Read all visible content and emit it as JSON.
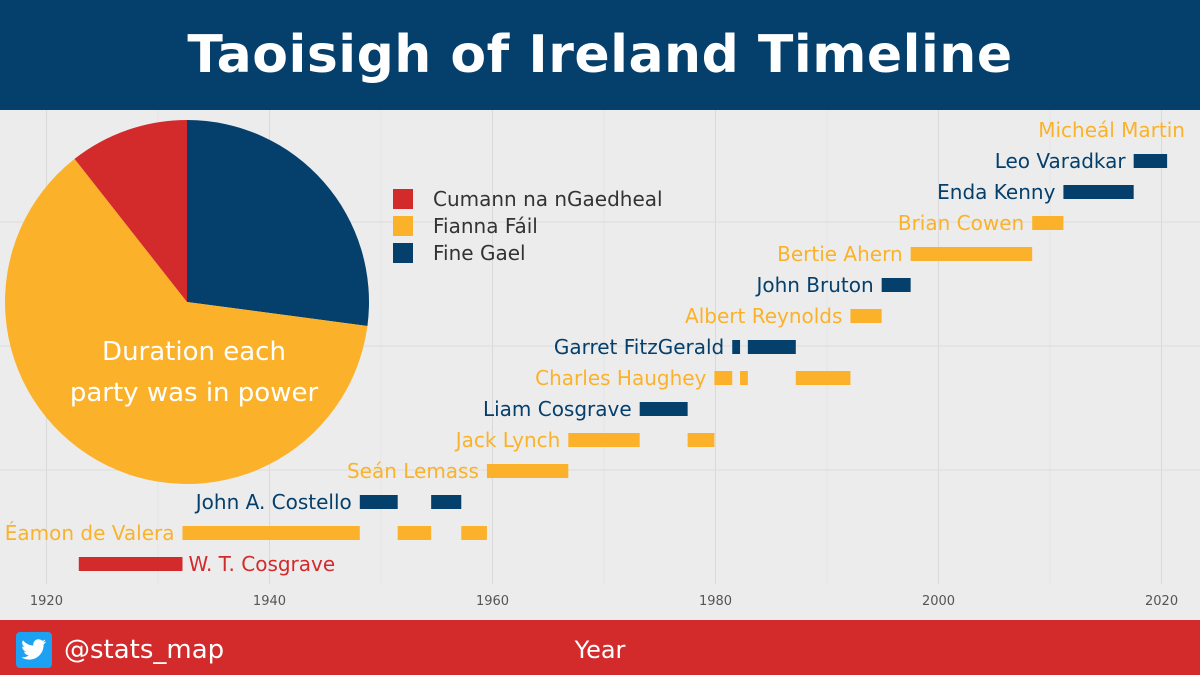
{
  "header": {
    "title": "Taoisigh of Ireland Timeline"
  },
  "footer": {
    "handle": "@stats_map",
    "icon": "twitter-icon"
  },
  "colors": {
    "cumann": "#d32b2b",
    "fianna": "#fbb22a",
    "fine": "#053f6b",
    "background": "#ececec"
  },
  "chart_data": [
    {
      "type": "bar",
      "subtype": "timeline",
      "title": "",
      "xlabel": "Year",
      "ylabel": "",
      "xlim": [
        1917,
        2023
      ],
      "x_ticks": [
        "1920",
        "1940",
        "1960",
        "1980",
        "2000",
        "2020"
      ],
      "grid": true,
      "parties": {
        "cumann": "Cumann na nGaedheal",
        "fianna": "Fianna Fáil",
        "fine": "Fine Gael"
      },
      "series": [
        {
          "name": "W. T. Cosgrave",
          "party": "cumann",
          "terms": [
            [
              1922.9,
              1932.2
            ]
          ]
        },
        {
          "name": "Éamon de Valera",
          "party": "fianna",
          "terms": [
            [
              1932.2,
              1948.1
            ],
            [
              1951.5,
              1954.5
            ],
            [
              1957.2,
              1959.5
            ]
          ]
        },
        {
          "name": "John A. Costello",
          "party": "fine",
          "terms": [
            [
              1948.1,
              1951.5
            ],
            [
              1954.5,
              1957.2
            ]
          ]
        },
        {
          "name": "Seán Lemass",
          "party": "fianna",
          "terms": [
            [
              1959.5,
              1966.8
            ]
          ]
        },
        {
          "name": "Jack Lynch",
          "party": "fianna",
          "terms": [
            [
              1966.8,
              1973.2
            ],
            [
              1977.5,
              1979.9
            ]
          ]
        },
        {
          "name": "Liam Cosgrave",
          "party": "fine",
          "terms": [
            [
              1973.2,
              1977.5
            ]
          ]
        },
        {
          "name": "Charles Haughey",
          "party": "fianna",
          "terms": [
            [
              1979.9,
              1981.5
            ],
            [
              1982.2,
              1982.9
            ],
            [
              1987.2,
              1992.1
            ]
          ]
        },
        {
          "name": "Garret FitzGerald",
          "party": "fine",
          "terms": [
            [
              1981.5,
              1982.2
            ],
            [
              1982.9,
              1987.2
            ]
          ]
        },
        {
          "name": "Albert Reynolds",
          "party": "fianna",
          "terms": [
            [
              1992.1,
              1994.9
            ]
          ]
        },
        {
          "name": "John Bruton",
          "party": "fine",
          "terms": [
            [
              1994.9,
              1997.5
            ]
          ]
        },
        {
          "name": "Bertie Ahern",
          "party": "fianna",
          "terms": [
            [
              1997.5,
              2008.4
            ]
          ]
        },
        {
          "name": "Brian Cowen",
          "party": "fianna",
          "terms": [
            [
              2008.4,
              2011.2
            ]
          ]
        },
        {
          "name": "Enda Kenny",
          "party": "fine",
          "terms": [
            [
              2011.2,
              2017.5
            ]
          ]
        },
        {
          "name": "Leo Varadkar",
          "party": "fine",
          "terms": [
            [
              2017.5,
              2020.5
            ]
          ]
        },
        {
          "name": "Micheál Martin",
          "party": "fianna",
          "terms": []
        }
      ]
    },
    {
      "type": "pie",
      "title": "Duration each party was in power",
      "title_lines": [
        "Duration each",
        "party was in power"
      ],
      "categories": [
        "Fine Gael",
        "Fianna Fáil",
        "Cumann na nGaedheal"
      ],
      "party_keys": [
        "fine",
        "fianna",
        "cumann"
      ],
      "values": [
        27.1,
        62.3,
        10.6
      ],
      "legend": {
        "placement": "top-center",
        "entries": [
          "Cumann na nGaedheal",
          "Fianna Fáil",
          "Fine Gael"
        ],
        "party_keys": [
          "cumann",
          "fianna",
          "fine"
        ]
      }
    }
  ]
}
